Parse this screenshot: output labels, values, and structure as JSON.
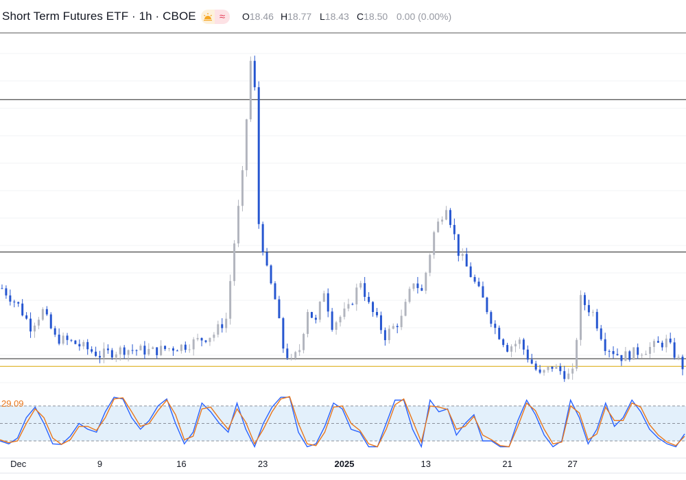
{
  "header": {
    "title": "Short Term Futures ETF · 1h · CBOE",
    "ohlc": [
      {
        "key": "O",
        "value": "18.46"
      },
      {
        "key": "H",
        "value": "18.77"
      },
      {
        "key": "L",
        "value": "18.43"
      },
      {
        "key": "C",
        "value": "18.50"
      }
    ],
    "change": "0.00 (0.00%)",
    "icons": [
      "sun-icon",
      "wave-icon"
    ]
  },
  "colors": {
    "up_candle": "#b2b5be",
    "down_candle": "#2656d0",
    "last_price_line": "#d9a600",
    "osc_k": "#2962ff",
    "osc_d": "#e8761a",
    "osc_band": "#e3f0fb"
  },
  "oscillator": {
    "value_label": "29.09"
  },
  "chart_data": [
    {
      "type": "candlestick",
      "title": "Short Term Futures ETF · 1h · CBOE",
      "x_tick_labels": [
        "Dec",
        "9",
        "16",
        "23",
        "2025",
        "13",
        "21",
        "27"
      ],
      "x_tick_positions": [
        4,
        24,
        44,
        64,
        84,
        104,
        124,
        140
      ],
      "y_range": [
        17.5,
        36.0
      ],
      "horizontal_levels": [
        32.5,
        24.5,
        18.9,
        18.5
      ],
      "last_price": 18.5,
      "count": 168,
      "key_points": [
        {
          "i": 0,
          "p": 22.6
        },
        {
          "i": 4,
          "p": 21.7
        },
        {
          "i": 7,
          "p": 20.6
        },
        {
          "i": 10,
          "p": 21.4
        },
        {
          "i": 13,
          "p": 20.0
        },
        {
          "i": 18,
          "p": 19.7
        },
        {
          "i": 24,
          "p": 19.1
        },
        {
          "i": 30,
          "p": 19.4
        },
        {
          "i": 37,
          "p": 19.3
        },
        {
          "i": 45,
          "p": 19.6
        },
        {
          "i": 52,
          "p": 20.2
        },
        {
          "i": 55,
          "p": 21.0
        },
        {
          "i": 57,
          "p": 25.0
        },
        {
          "i": 59,
          "p": 28.5
        },
        {
          "i": 61,
          "p": 34.5
        },
        {
          "i": 62,
          "p": 33.0
        },
        {
          "i": 63,
          "p": 26.0
        },
        {
          "i": 65,
          "p": 23.5
        },
        {
          "i": 67,
          "p": 22.0
        },
        {
          "i": 69,
          "p": 19.5
        },
        {
          "i": 71,
          "p": 18.7
        },
        {
          "i": 73,
          "p": 19.4
        },
        {
          "i": 75,
          "p": 21.5
        },
        {
          "i": 77,
          "p": 20.8
        },
        {
          "i": 79,
          "p": 22.5
        },
        {
          "i": 81,
          "p": 20.7
        },
        {
          "i": 85,
          "p": 21.5
        },
        {
          "i": 88,
          "p": 23.0
        },
        {
          "i": 90,
          "p": 21.7
        },
        {
          "i": 94,
          "p": 20.1
        },
        {
          "i": 98,
          "p": 21.0
        },
        {
          "i": 101,
          "p": 23.0
        },
        {
          "i": 103,
          "p": 22.4
        },
        {
          "i": 106,
          "p": 25.5
        },
        {
          "i": 109,
          "p": 27.0
        },
        {
          "i": 112,
          "p": 24.5
        },
        {
          "i": 115,
          "p": 23.3
        },
        {
          "i": 118,
          "p": 22.0
        },
        {
          "i": 121,
          "p": 20.5
        },
        {
          "i": 124,
          "p": 19.5
        },
        {
          "i": 127,
          "p": 19.8
        },
        {
          "i": 129,
          "p": 19.0
        },
        {
          "i": 132,
          "p": 18.0
        },
        {
          "i": 135,
          "p": 18.5
        },
        {
          "i": 139,
          "p": 18.0
        },
        {
          "i": 140,
          "p": 18.1
        },
        {
          "i": 142,
          "p": 22.0
        },
        {
          "i": 145,
          "p": 21.3
        },
        {
          "i": 148,
          "p": 19.6
        },
        {
          "i": 152,
          "p": 19.0
        },
        {
          "i": 158,
          "p": 19.4
        },
        {
          "i": 163,
          "p": 19.8
        },
        {
          "i": 167,
          "p": 18.5
        }
      ]
    },
    {
      "type": "line",
      "title": "",
      "y_range": [
        0,
        100
      ],
      "band": [
        20,
        80
      ],
      "mid": 50,
      "last_value": 29.09,
      "series": [
        {
          "color": "#2962ff",
          "values": [
            20,
            15,
            25,
            60,
            78,
            50,
            15,
            14,
            28,
            50,
            40,
            35,
            70,
            95,
            92,
            60,
            40,
            55,
            80,
            92,
            50,
            15,
            35,
            85,
            70,
            50,
            35,
            85,
            40,
            10,
            50,
            78,
            95,
            95,
            35,
            10,
            15,
            45,
            85,
            75,
            40,
            35,
            10,
            10,
            50,
            90,
            90,
            40,
            10,
            90,
            70,
            75,
            30,
            50,
            65,
            20,
            20,
            10,
            10,
            55,
            90,
            65,
            30,
            10,
            20,
            90,
            60,
            15,
            40,
            85,
            45,
            60,
            90,
            70,
            40,
            25,
            15,
            10,
            32
          ]
        },
        {
          "color": "#e8761a",
          "values": [
            22,
            17,
            20,
            50,
            75,
            60,
            25,
            14,
            22,
            45,
            45,
            38,
            60,
            92,
            94,
            70,
            45,
            50,
            72,
            90,
            65,
            22,
            28,
            75,
            78,
            58,
            40,
            75,
            52,
            15,
            40,
            70,
            92,
            96,
            50,
            15,
            12,
            35,
            78,
            80,
            50,
            38,
            15,
            10,
            40,
            82,
            92,
            55,
            18,
            80,
            78,
            74,
            40,
            45,
            62,
            30,
            22,
            12,
            10,
            45,
            85,
            72,
            40,
            15,
            18,
            80,
            68,
            22,
            32,
            78,
            55,
            55,
            85,
            78,
            48,
            30,
            18,
            12,
            28
          ]
        }
      ]
    }
  ]
}
